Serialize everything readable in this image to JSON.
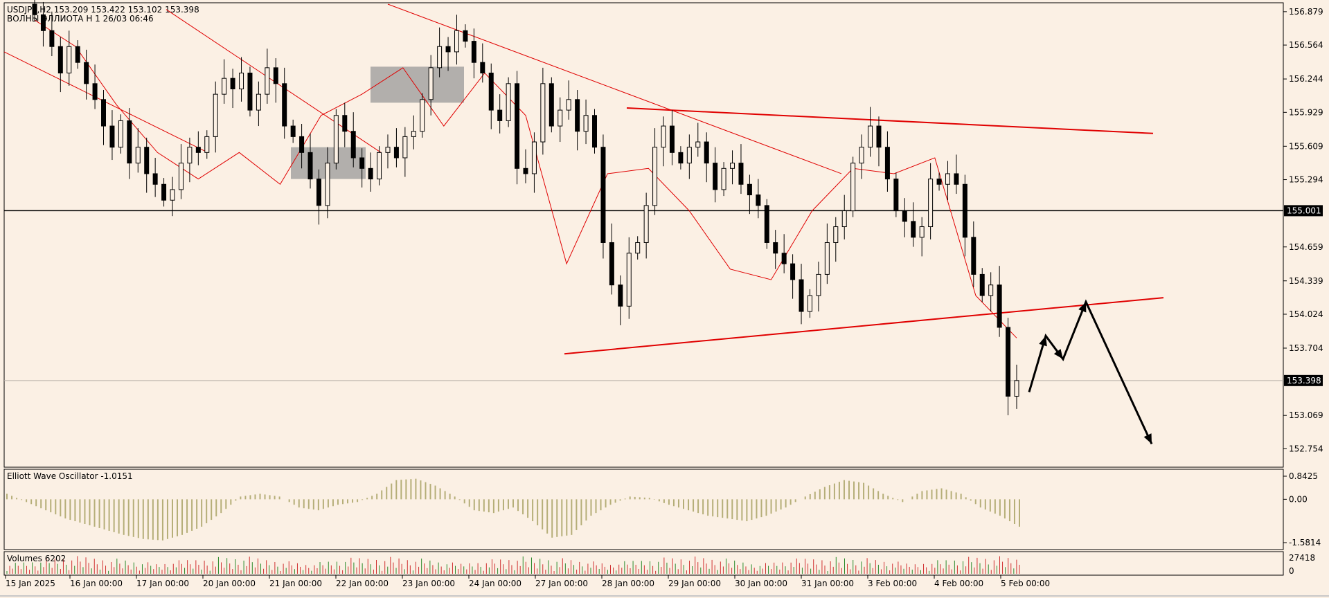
{
  "header": {
    "symbol_line": "USDJPY,H2  153.209 153.422 153.102 153.398",
    "subtitle_line": "ВОЛНЫ ЭЛЛИОТА H 1 26/03 06:46"
  },
  "colors": {
    "background": "#fbf0e4",
    "candle": "#000000",
    "moving_average": "#e00000",
    "trendline": "#e00000",
    "oscillator": "#b5ae78",
    "volume": "#d03030",
    "box": "#9a9a9a",
    "forecast_arrow": "#000000"
  },
  "chart_data": [
    {
      "type": "candlestick",
      "symbol": "USDJPY",
      "timeframe": "H2",
      "ohlc_last": {
        "open": 153.209,
        "high": 153.422,
        "low": 153.102,
        "close": 153.398
      },
      "ylim": [
        152.6,
        156.95
      ],
      "y_ticks": [
        156.879,
        156.564,
        156.244,
        155.929,
        155.609,
        155.294,
        154.659,
        154.339,
        154.024,
        153.704,
        153.069,
        152.754
      ],
      "x_tick_labels": [
        "15 Jan 2025",
        "16 Jan 00:00",
        "17 Jan 00:00",
        "20 Jan 00:00",
        "21 Jan 00:00",
        "22 Jan 00:00",
        "23 Jan 00:00",
        "24 Jan 00:00",
        "27 Jan 00:00",
        "28 Jan 00:00",
        "29 Jan 00:00",
        "30 Jan 00:00",
        "31 Jan 00:00",
        "3 Feb 00:00",
        "4 Feb 00:00",
        "5 Feb 00:00"
      ],
      "horizontal_line": {
        "value": 155.001,
        "label": "155.001"
      },
      "current_price": {
        "value": 153.398,
        "label": "153.398"
      },
      "candles_close": [
        156.85,
        156.7,
        156.55,
        156.3,
        156.55,
        156.4,
        156.2,
        156.05,
        155.8,
        155.6,
        155.85,
        155.45,
        155.6,
        155.35,
        155.25,
        155.1,
        155.2,
        155.45,
        155.6,
        155.55,
        155.7,
        156.1,
        156.25,
        156.15,
        156.3,
        155.95,
        156.1,
        156.35,
        156.2,
        155.8,
        155.7,
        155.55,
        155.3,
        155.05,
        155.45,
        155.9,
        155.75,
        155.5,
        155.4,
        155.3,
        155.55,
        155.6,
        155.5,
        155.7,
        155.75,
        156.05,
        156.35,
        156.55,
        156.5,
        156.7,
        156.6,
        156.4,
        156.3,
        155.95,
        155.85,
        156.2,
        155.4,
        155.35,
        155.65,
        156.2,
        155.8,
        155.95,
        156.05,
        155.75,
        155.9,
        155.6,
        154.7,
        154.3,
        154.1,
        154.6,
        154.7,
        155.05,
        155.6,
        155.8,
        155.55,
        155.45,
        155.6,
        155.65,
        155.45,
        155.2,
        155.4,
        155.45,
        155.25,
        155.15,
        155.05,
        154.7,
        154.6,
        154.5,
        154.35,
        154.05,
        154.2,
        154.4,
        154.7,
        154.85,
        155.0,
        155.45,
        155.6,
        155.8,
        155.6,
        155.3,
        155.0,
        154.9,
        154.75,
        154.85,
        155.3,
        155.25,
        155.35,
        155.25,
        154.75,
        154.4,
        154.2,
        154.3,
        153.9,
        153.25,
        153.398
      ],
      "moving_average_approx": [
        156.8,
        156.55,
        156.0,
        155.55,
        155.3,
        155.55,
        155.25,
        155.9,
        156.1,
        156.35,
        155.8,
        156.3,
        155.9,
        154.5,
        155.35,
        155.4,
        155.0,
        154.45,
        154.35,
        155.0,
        155.4,
        155.35,
        155.5,
        154.2,
        153.8
      ]
    },
    {
      "type": "bar",
      "name": "Elliott Wave Oscillator",
      "value_label": "Elliott Wave Oscillator -1.0151",
      "current_value": -1.0151,
      "y_ticks": [
        0.8425,
        0.0,
        -1.5814
      ],
      "values": [
        0.2,
        -0.1,
        -0.4,
        -0.7,
        -0.9,
        -1.1,
        -1.3,
        -1.45,
        -1.5,
        -1.3,
        -1.0,
        -0.5,
        0.1,
        0.2,
        0.1,
        -0.3,
        -0.4,
        -0.2,
        -0.1,
        0.2,
        0.7,
        0.75,
        0.5,
        0.1,
        -0.4,
        -0.5,
        -0.3,
        -0.8,
        -1.4,
        -1.3,
        -0.6,
        -0.2,
        0.1,
        0.05,
        -0.2,
        -0.4,
        -0.6,
        -0.7,
        -0.8,
        -0.6,
        -0.3,
        0.1,
        0.45,
        0.7,
        0.6,
        0.2,
        -0.1,
        0.3,
        0.4,
        0.2,
        -0.3,
        -0.6,
        -1.0
      ]
    },
    {
      "type": "bar",
      "name": "Volumes",
      "value_label": "Volumes 6202",
      "current_value": 6202,
      "y_ticks": [
        27418,
        0
      ]
    }
  ],
  "annotations": {
    "forecast_path": "elliott-wave-forecast-arrow",
    "highlight_boxes": 2
  }
}
